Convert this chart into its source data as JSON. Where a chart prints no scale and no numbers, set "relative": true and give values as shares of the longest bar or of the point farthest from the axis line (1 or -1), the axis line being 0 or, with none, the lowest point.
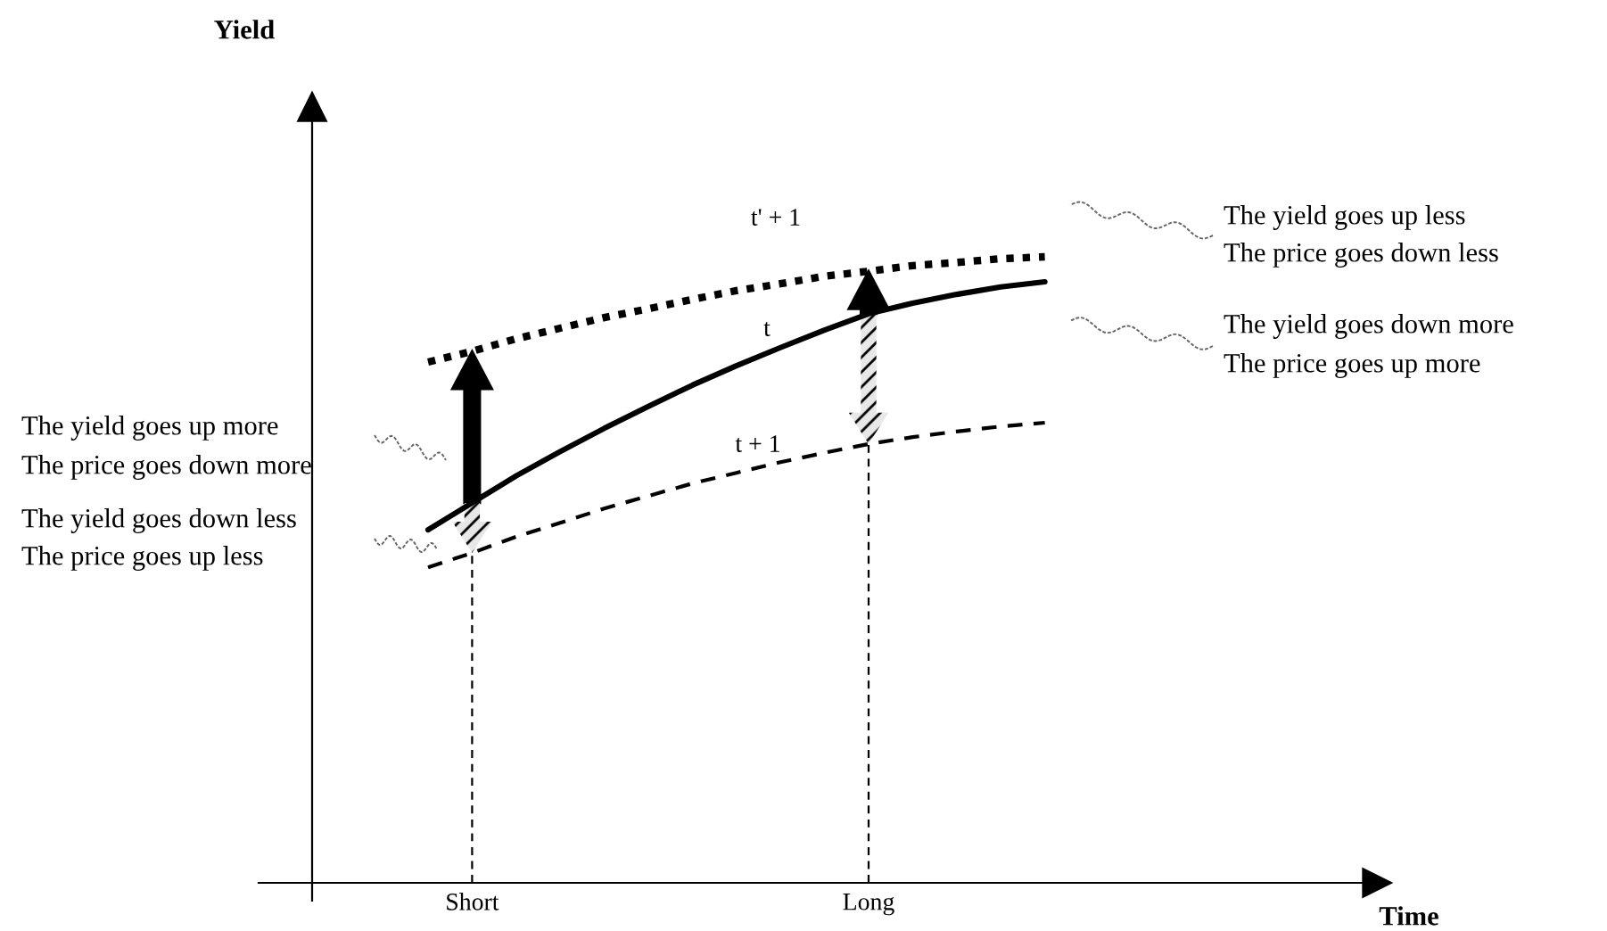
{
  "chart_data": {
    "type": "line",
    "relative": true,
    "categories": [
      null,
      "Short",
      null,
      null,
      null,
      null,
      null,
      null,
      null,
      null,
      "Long",
      null,
      null,
      null,
      null
    ],
    "series": [
      {
        "name": "t' + 1",
        "color": "#000000",
        "line_style": "dotted",
        "values": [
          0.832,
          0.849,
          0.869,
          0.886,
          0.903,
          0.917,
          0.932,
          0.946,
          0.957,
          0.969,
          0.977,
          0.986,
          0.991,
          0.997,
          1.0
        ]
      },
      {
        "name": "t",
        "color": "#000000",
        "line_style": "solid",
        "values": [
          0.564,
          0.607,
          0.65,
          0.689,
          0.726,
          0.761,
          0.795,
          0.826,
          0.855,
          0.883,
          0.909,
          0.926,
          0.94,
          0.952,
          0.96
        ]
      },
      {
        "name": "t + 1",
        "color": "#000000",
        "line_style": "dashed",
        "values": [
          0.504,
          0.527,
          0.553,
          0.575,
          0.598,
          0.618,
          0.638,
          0.655,
          0.672,
          0.687,
          0.701,
          0.712,
          0.721,
          0.729,
          0.735
        ]
      }
    ],
    "ref_lines": [
      {
        "axis": "x",
        "value": "Short",
        "line_style": "dashed"
      },
      {
        "axis": "x",
        "value": "Long",
        "line_style": "dashed"
      }
    ],
    "annotations": [
      "Yield",
      "Time",
      "The yield goes up less",
      "The price goes down less",
      "The yield goes down more",
      "The price goes up more",
      "The yield goes up more",
      "The price goes down more",
      "The yield goes down less",
      "The price goes up less"
    ]
  }
}
